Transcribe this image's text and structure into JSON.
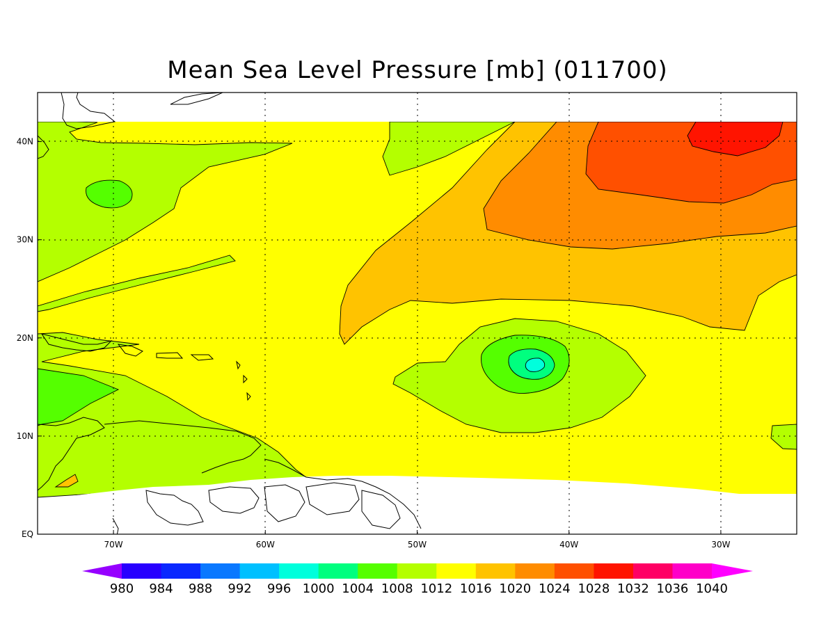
{
  "title": "Mean Sea Level Pressure [mb] (011700)",
  "map": {
    "lon_range": [
      -75,
      -25
    ],
    "lat_range": [
      0,
      45
    ],
    "data_lat_range": [
      4,
      42
    ],
    "x_ticks": [
      {
        "label": "70W",
        "lon": -70
      },
      {
        "label": "60W",
        "lon": -60
      },
      {
        "label": "50W",
        "lon": -50
      },
      {
        "label": "40W",
        "lon": -40
      },
      {
        "label": "30W",
        "lon": -30
      }
    ],
    "y_ticks": [
      {
        "label": "EQ",
        "lat": 0
      },
      {
        "label": "10N",
        "lat": 10
      },
      {
        "label": "20N",
        "lat": 20
      },
      {
        "label": "30N",
        "lat": 30
      },
      {
        "label": "40N",
        "lat": 40
      }
    ],
    "features": {
      "low_center": {
        "lon": -42.5,
        "lat": 17.2,
        "min_level": 1000
      },
      "high_center": {
        "lon": -29,
        "lat": 40.5,
        "max_level": 1032
      },
      "secondary_low": {
        "lon": -70,
        "lat": 34.7,
        "level": 1008
      }
    }
  },
  "colorbar": {
    "labels": [
      "980",
      "984",
      "988",
      "992",
      "996",
      "1000",
      "1004",
      "1008",
      "1012",
      "1016",
      "1020",
      "1024",
      "1028",
      "1032",
      "1036",
      "1040"
    ],
    "colors": [
      "#9600ff",
      "#2800ff",
      "#0a28ff",
      "#0a78ff",
      "#00c0ff",
      "#00ffdc",
      "#00ff7f",
      "#55ff00",
      "#b4ff00",
      "#ffff00",
      "#ffc300",
      "#ff8c00",
      "#ff5000",
      "#ff1400",
      "#ff0064",
      "#ff00c8",
      "#ff00ff"
    ]
  }
}
